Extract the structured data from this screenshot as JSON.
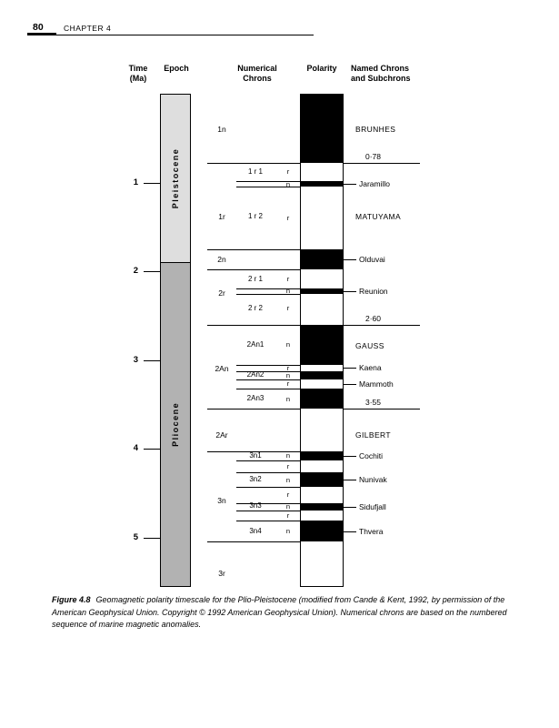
{
  "page_header": {
    "number": "80",
    "chapter": "CHAPTER 4"
  },
  "figure": {
    "column_headers": {
      "time": "Time\n(Ma)",
      "epoch": "Epoch",
      "numerical": "Numerical\nChrons",
      "polarity": "Polarity",
      "named": "Named Chrons\nand Subchrons"
    },
    "time_ticks": [
      "1",
      "2",
      "3",
      "4",
      "5"
    ],
    "epochs": [
      {
        "name": "Pleistocene",
        "from": 0,
        "to": 1.9,
        "color": "#dedede"
      },
      {
        "name": "Pliocene",
        "from": 1.9,
        "to": 5.56,
        "color": "#b2b2b2"
      }
    ],
    "chart_data": {
      "type": "polarity-timescale",
      "unit": "Ma",
      "time_range": [
        0,
        5.56
      ],
      "polarity_colors": {
        "n": "#000000",
        "r": "#ffffff"
      },
      "intervals": [
        {
          "from": 0.0,
          "to": 0.78,
          "polarity": "n"
        },
        {
          "from": 0.78,
          "to": 0.984,
          "polarity": "r"
        },
        {
          "from": 0.984,
          "to": 1.049,
          "polarity": "n"
        },
        {
          "from": 1.049,
          "to": 1.757,
          "polarity": "r"
        },
        {
          "from": 1.757,
          "to": 1.983,
          "polarity": "n"
        },
        {
          "from": 1.983,
          "to": 2.19,
          "polarity": "r"
        },
        {
          "from": 2.19,
          "to": 2.26,
          "polarity": "n"
        },
        {
          "from": 2.26,
          "to": 2.6,
          "polarity": "r"
        },
        {
          "from": 2.6,
          "to": 3.054,
          "polarity": "n"
        },
        {
          "from": 3.054,
          "to": 3.127,
          "polarity": "r"
        },
        {
          "from": 3.127,
          "to": 3.221,
          "polarity": "n"
        },
        {
          "from": 3.221,
          "to": 3.325,
          "polarity": "r"
        },
        {
          "from": 3.325,
          "to": 3.553,
          "polarity": "n"
        },
        {
          "from": 3.553,
          "to": 4.033,
          "polarity": "r"
        },
        {
          "from": 4.033,
          "to": 4.134,
          "polarity": "n"
        },
        {
          "from": 4.134,
          "to": 4.265,
          "polarity": "r"
        },
        {
          "from": 4.265,
          "to": 4.432,
          "polarity": "n"
        },
        {
          "from": 4.432,
          "to": 4.611,
          "polarity": "r"
        },
        {
          "from": 4.611,
          "to": 4.694,
          "polarity": "n"
        },
        {
          "from": 4.694,
          "to": 4.812,
          "polarity": "r"
        },
        {
          "from": 4.812,
          "to": 5.046,
          "polarity": "n"
        },
        {
          "from": 5.046,
          "to": 5.56,
          "polarity": "r"
        }
      ]
    },
    "major_chrons": [
      {
        "label": "1n",
        "ma": 0.4
      },
      {
        "label": "1r",
        "ma": 1.38
      },
      {
        "label": "2n",
        "ma": 1.87
      },
      {
        "label": "2r",
        "ma": 2.25
      },
      {
        "label": "2An",
        "ma": 3.1
      },
      {
        "label": "2Ar",
        "ma": 3.85
      },
      {
        "label": "3n",
        "ma": 4.58
      },
      {
        "label": "3r",
        "ma": 5.4
      }
    ],
    "sub_chrons": [
      {
        "label": "1 r 1",
        "ma": 0.88
      },
      {
        "label": "1 r 2",
        "ma": 1.38
      },
      {
        "label": "2 r 1",
        "ma": 2.09
      },
      {
        "label": "2 r 2",
        "ma": 2.42
      },
      {
        "label": "2An1",
        "ma": 2.83
      },
      {
        "label": "2An2",
        "ma": 3.17
      },
      {
        "label": "2An3",
        "ma": 3.44
      },
      {
        "label": "3n1",
        "ma": 4.08
      },
      {
        "label": "3n2",
        "ma": 4.35
      },
      {
        "label": "3n3",
        "ma": 4.65
      },
      {
        "label": "3n4",
        "ma": 4.93
      }
    ],
    "polarity_letters": [
      {
        "letter": "r",
        "ma": 0.88
      },
      {
        "letter": "n",
        "ma": 1.017
      },
      {
        "letter": "r",
        "ma": 1.4
      },
      {
        "letter": "r",
        "ma": 2.09
      },
      {
        "letter": "n",
        "ma": 2.225
      },
      {
        "letter": "r",
        "ma": 2.42
      },
      {
        "letter": "n",
        "ma": 2.83
      },
      {
        "letter": "r",
        "ma": 3.09
      },
      {
        "letter": "n",
        "ma": 3.17
      },
      {
        "letter": "r",
        "ma": 3.27
      },
      {
        "letter": "n",
        "ma": 3.44
      },
      {
        "letter": "n",
        "ma": 4.08
      },
      {
        "letter": "r",
        "ma": 4.2
      },
      {
        "letter": "n",
        "ma": 4.35
      },
      {
        "letter": "r",
        "ma": 4.52
      },
      {
        "letter": "n",
        "ma": 4.65
      },
      {
        "letter": "r",
        "ma": 4.75
      },
      {
        "letter": "n",
        "ma": 4.93
      }
    ],
    "named_chrons": [
      {
        "label": "BRUNHES",
        "ma": 0.4
      },
      {
        "label": "MATUYAMA",
        "ma": 1.38
      },
      {
        "label": "GAUSS",
        "ma": 2.84
      },
      {
        "label": "GILBERT",
        "ma": 3.85
      }
    ],
    "named_subchrons": [
      {
        "label": "Jaramillo",
        "ma": 1.017
      },
      {
        "label": "Olduvai",
        "ma": 1.87
      },
      {
        "label": "Reunion",
        "ma": 2.225
      },
      {
        "label": "Kaena",
        "ma": 3.09
      },
      {
        "label": "Mammoth",
        "ma": 3.273
      },
      {
        "label": "Cochiti",
        "ma": 4.084
      },
      {
        "label": "Nunivak",
        "ma": 4.349
      },
      {
        "label": "Sidufjall",
        "ma": 4.653
      },
      {
        "label": "Thvera",
        "ma": 4.929
      }
    ],
    "age_boundaries": [
      {
        "label": "0·78",
        "ma": 0.78
      },
      {
        "label": "2·60",
        "ma": 2.6
      },
      {
        "label": "3·55",
        "ma": 3.553
      }
    ],
    "separators": {
      "major": [
        0.78,
        1.757,
        1.983,
        2.6,
        3.553,
        4.033,
        5.046
      ],
      "minor": [
        0.984,
        1.049,
        2.19,
        2.26,
        3.054,
        3.127,
        3.221,
        3.325,
        4.134,
        4.265,
        4.432,
        4.611,
        4.694,
        4.812
      ]
    }
  },
  "caption": {
    "label": "Figure 4.8",
    "text": "Geomagnetic polarity timescale for the Plio-Pleistocene (modified from Cande & Kent, 1992, by permission of the American Geophysical Union. Copyright © 1992 American Geophysical Union). Numerical chrons are based on the numbered sequence of marine magnetic anomalies."
  }
}
